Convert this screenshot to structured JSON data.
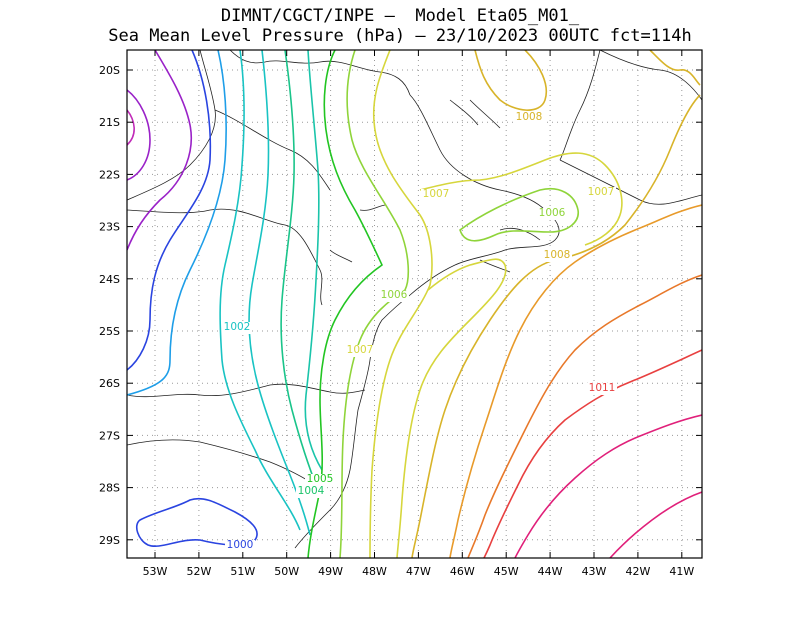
{
  "header": {
    "line1": "DIMNT/CGCT/INPE –  Model Eta05_M01_",
    "line2": "Sea Mean Level Pressure (hPa) – 23/10/2023 00UTC fct=114h"
  },
  "axes": {
    "lon_labels": [
      "53W",
      "52W",
      "51W",
      "50W",
      "49W",
      "48W",
      "47W",
      "46W",
      "45W",
      "44W",
      "43W",
      "42W",
      "41W"
    ],
    "lat_labels": [
      "20S",
      "21S",
      "22S",
      "23S",
      "24S",
      "25S",
      "26S",
      "27S",
      "28S",
      "29S"
    ]
  },
  "contour_labels": [
    {
      "text": "1000",
      "color": "#2a44e0"
    },
    {
      "text": "1002",
      "color": "#19c3c3"
    },
    {
      "text": "1004",
      "color": "#1ac46a"
    },
    {
      "text": "1005",
      "color": "#22c522"
    },
    {
      "text": "1006",
      "color": "#8fd43a"
    },
    {
      "text": "1006",
      "color": "#8fd43a"
    },
    {
      "text": "1007",
      "color": "#d6d63c"
    },
    {
      "text": "1007",
      "color": "#d6d63c"
    },
    {
      "text": "1007",
      "color": "#d6d63c"
    },
    {
      "text": "1008",
      "color": "#d8b42a"
    },
    {
      "text": "1008",
      "color": "#d8b42a"
    },
    {
      "text": "1011",
      "color": "#e84040"
    }
  ],
  "colors": {
    "purple": "#9a22c8",
    "blue": "#2a44e0",
    "sky": "#1e9ee8",
    "cyan": "#19c3c3",
    "teal": "#1ac48a",
    "green": "#22c522",
    "lime": "#8fd43a",
    "yellow": "#d6d63c",
    "gold": "#d8b42a",
    "orange": "#e88a2a",
    "red": "#e84040",
    "magenta": "#e0207a"
  }
}
